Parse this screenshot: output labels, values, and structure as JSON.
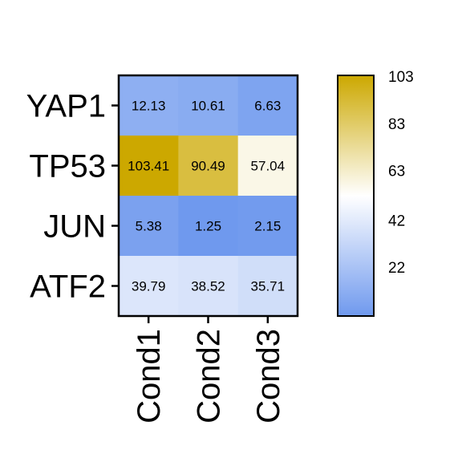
{
  "chart_data": {
    "type": "heatmap",
    "rows": [
      "YAP1",
      "TP53",
      "JUN",
      "ATF2"
    ],
    "columns": [
      "Cond1",
      "Cond2",
      "Cond3"
    ],
    "values": [
      [
        12.13,
        10.61,
        6.63
      ],
      [
        103.41,
        90.49,
        57.04
      ],
      [
        5.38,
        1.25,
        2.15
      ],
      [
        39.79,
        38.52,
        35.71
      ]
    ],
    "value_labels": [
      [
        "12.13",
        "10.61",
        "6.63"
      ],
      [
        "103.41",
        "90.49",
        "57.04"
      ],
      [
        "5.38",
        "1.25",
        "2.15"
      ],
      [
        "39.79",
        "38.52",
        "35.71"
      ]
    ],
    "color_scale": {
      "min": 1.25,
      "max": 103.41,
      "low_color": "#6f99ee",
      "mid_color": "#ffffff",
      "high_color": "#cca800"
    },
    "colorbar_ticks": [
      {
        "value": 103,
        "label": "103"
      },
      {
        "value": 83,
        "label": "83"
      },
      {
        "value": 63,
        "label": "63"
      },
      {
        "value": 42,
        "label": "42"
      },
      {
        "value": 22,
        "label": "22"
      }
    ],
    "title": "",
    "xlabel": "",
    "ylabel": ""
  }
}
